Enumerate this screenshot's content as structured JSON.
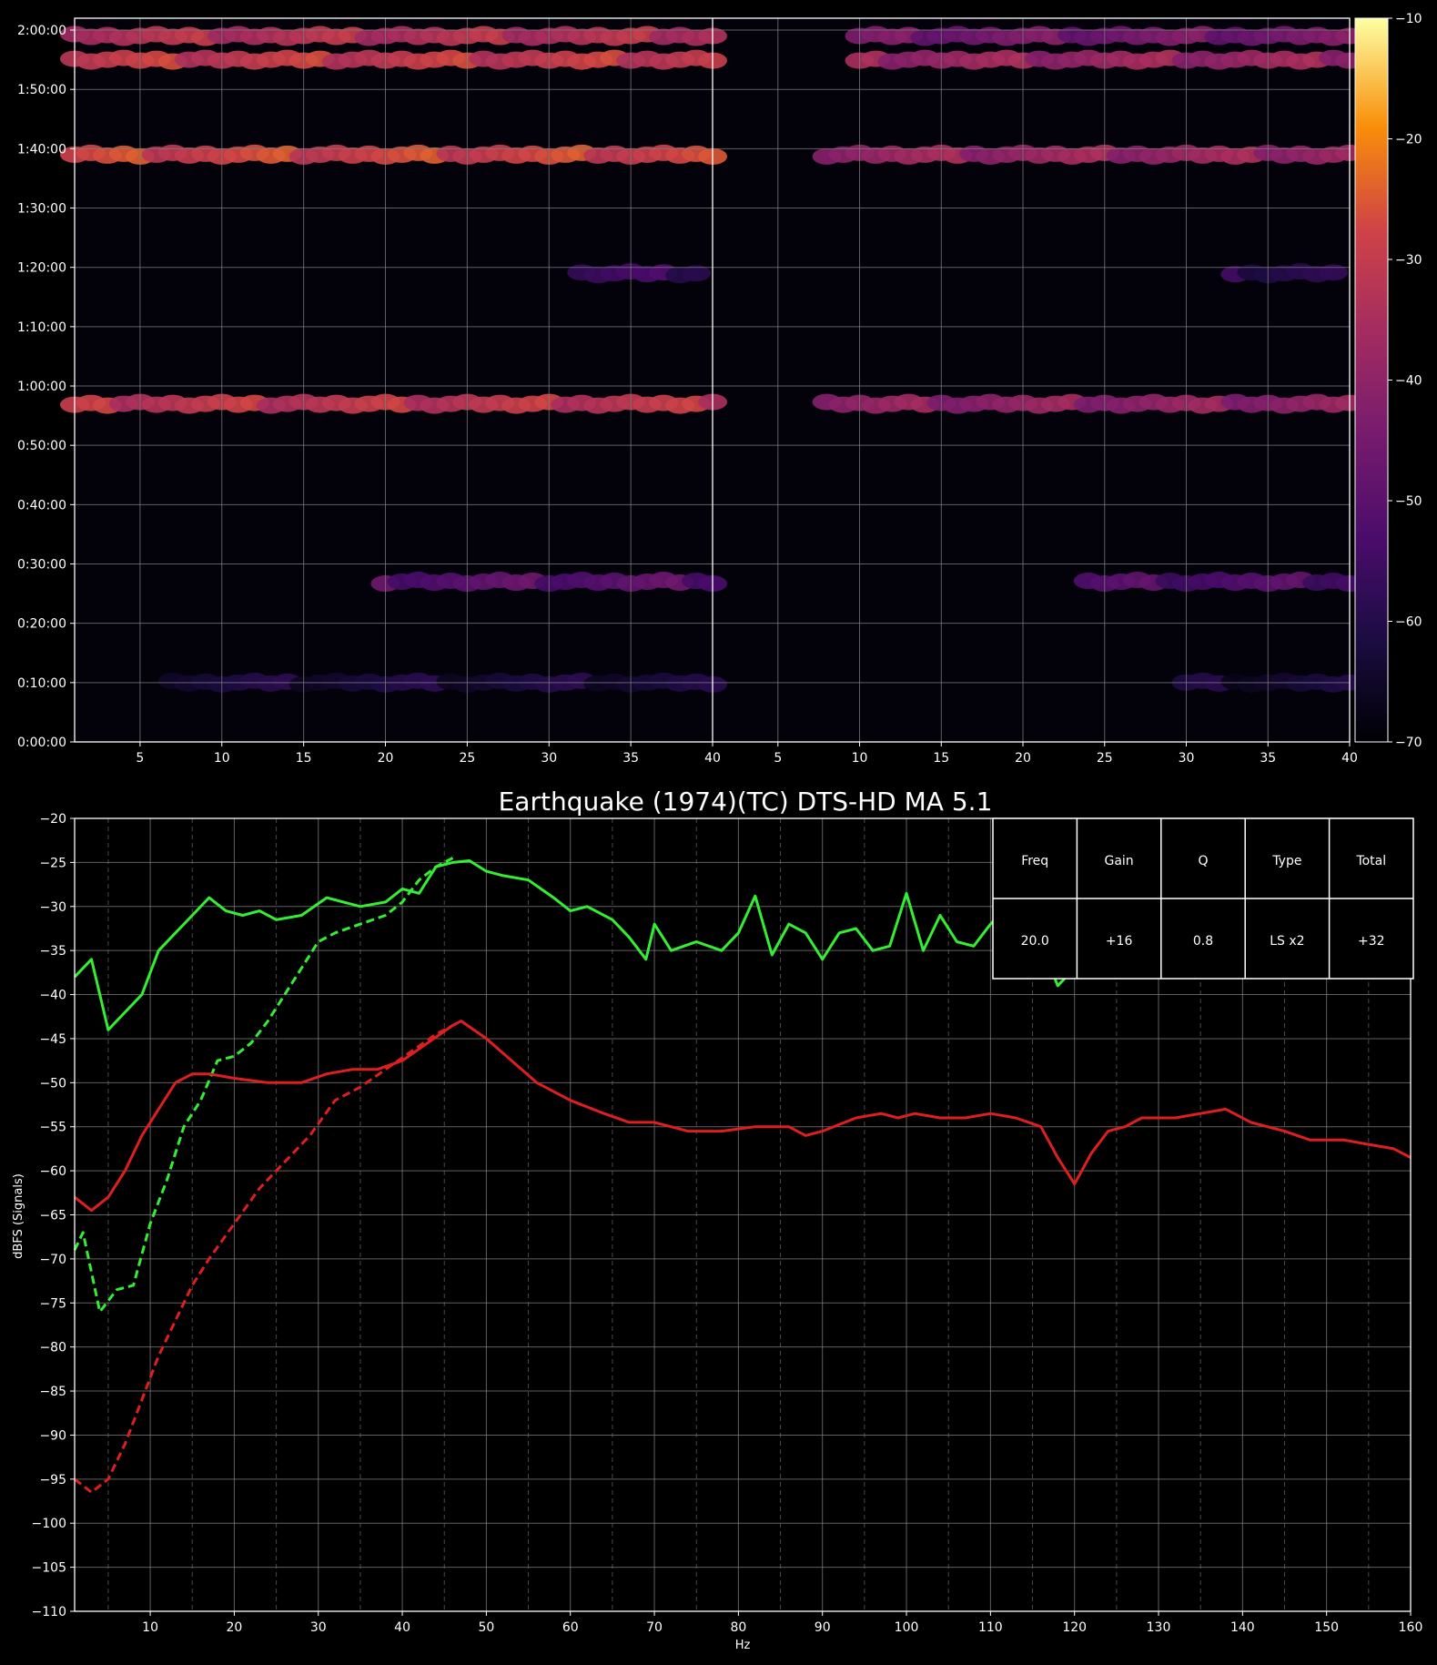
{
  "chart_data": [
    {
      "type": "heatmap",
      "panels": 2,
      "xlim": [
        1,
        40
      ],
      "xticks": [
        5,
        10,
        15,
        20,
        25,
        30,
        35,
        40
      ],
      "ylim_seconds": [
        0,
        7320
      ],
      "yticks": [
        "0:00:00",
        "0:10:00",
        "0:20:00",
        "0:30:00",
        "0:40:00",
        "0:50:00",
        "1:00:00",
        "1:10:00",
        "1:20:00",
        "1:30:00",
        "1:40:00",
        "1:50:00",
        "2:00:00"
      ],
      "colorbar": {
        "range": [
          -70,
          -10
        ],
        "ticks": [
          -10,
          -20,
          -30,
          -40,
          -50,
          -60,
          -70
        ],
        "colormap": "inferno"
      },
      "grid": true,
      "bands": [
        {
          "time": "1:59:00",
          "panel": 1,
          "x": [
            1,
            40
          ],
          "level": -33
        },
        {
          "time": "1:55:00",
          "panel": 1,
          "x": [
            1,
            40
          ],
          "level": -30
        },
        {
          "time": "1:39:00",
          "panel": 1,
          "x": [
            1,
            40
          ],
          "level": -28
        },
        {
          "time": "0:57:00",
          "panel": 1,
          "x": [
            1,
            40
          ],
          "level": -31
        },
        {
          "time": "0:27:00",
          "panel": 1,
          "x": [
            20,
            40
          ],
          "level": -50
        },
        {
          "time": "0:10:00",
          "panel": 1,
          "x": [
            7,
            40
          ],
          "level": -62
        },
        {
          "time": "1:19:00",
          "panel": 1,
          "x": [
            32,
            39
          ],
          "level": -56
        },
        {
          "time": "1:59:00",
          "panel": 2,
          "x": [
            10,
            40
          ],
          "level": -45
        },
        {
          "time": "1:55:00",
          "panel": 2,
          "x": [
            10,
            40
          ],
          "level": -38
        },
        {
          "time": "1:39:00",
          "panel": 2,
          "x": [
            8,
            40
          ],
          "level": -38
        },
        {
          "time": "0:57:00",
          "panel": 2,
          "x": [
            8,
            40
          ],
          "level": -40
        },
        {
          "time": "0:27:00",
          "panel": 2,
          "x": [
            24,
            40
          ],
          "level": -52
        },
        {
          "time": "0:10:00",
          "panel": 2,
          "x": [
            30,
            40
          ],
          "level": -63
        },
        {
          "time": "1:19:00",
          "panel": 2,
          "x": [
            33,
            39
          ],
          "level": -58
        }
      ]
    },
    {
      "type": "line",
      "title": "Earthquake (1974)(TC) DTS-HD MA 5.1",
      "xlabel": "Hz",
      "ylabel": "dBFS (Signals)",
      "xlim": [
        1,
        160
      ],
      "ylim": [
        -110,
        -20
      ],
      "xticks": [
        10,
        20,
        30,
        40,
        50,
        60,
        70,
        80,
        90,
        100,
        110,
        120,
        130,
        140,
        150,
        160
      ],
      "yticks": [
        -20,
        -25,
        -30,
        -35,
        -40,
        -45,
        -50,
        -55,
        -60,
        -65,
        -70,
        -75,
        -80,
        -85,
        -90,
        -95,
        -100,
        -105,
        -110
      ],
      "grid": true,
      "series": [
        {
          "color": "#33ee33",
          "style": "solid",
          "x": [
            1,
            3,
            5,
            7,
            9,
            11,
            13,
            15,
            17,
            19,
            21,
            23,
            25,
            28,
            31,
            35,
            38,
            40,
            42,
            44,
            46,
            48,
            50,
            52,
            55,
            58,
            60,
            62,
            65,
            67,
            69,
            70,
            72,
            75,
            78,
            80,
            82,
            84,
            86,
            88,
            90,
            92,
            94,
            96,
            98,
            100,
            102,
            104,
            106,
            108,
            110,
            112,
            114,
            116,
            118,
            119,
            121,
            123
          ],
          "y": [
            -38,
            -36,
            -44,
            -42,
            -40,
            -35,
            -33,
            -31,
            -29,
            -30.5,
            -31,
            -30.5,
            -31.5,
            -31,
            -29,
            -30,
            -29.5,
            -28,
            -28.5,
            -25.5,
            -25,
            -24.8,
            -26,
            -26.5,
            -27,
            -29,
            -30.5,
            -30,
            -31.5,
            -33.5,
            -36,
            -32,
            -35,
            -34,
            -35,
            -33,
            -28.8,
            -35.5,
            -32,
            -33,
            -36,
            -33,
            -32.5,
            -35,
            -34.5,
            -28.5,
            -35,
            -31,
            -34,
            -34.5,
            -32,
            -30,
            -31,
            -34,
            -39,
            -38,
            -36,
            -35
          ]
        },
        {
          "color": "#33ee33",
          "style": "dashed",
          "x": [
            1,
            2,
            4,
            6,
            8,
            10,
            12,
            14,
            16,
            18,
            20,
            22,
            24,
            26,
            28,
            30,
            32,
            35,
            38,
            40,
            42,
            44,
            46
          ],
          "y": [
            -69,
            -67,
            -76,
            -73.5,
            -73,
            -66,
            -61,
            -55,
            -52,
            -47.5,
            -47,
            -45.5,
            -43,
            -40,
            -37,
            -34,
            -33,
            -32,
            -31,
            -29.5,
            -27,
            -25.5,
            -24.5
          ]
        },
        {
          "color": "#dd1f1f",
          "style": "solid",
          "x": [
            1,
            3,
            5,
            7,
            9,
            11,
            13,
            15,
            17,
            20,
            24,
            28,
            31,
            34,
            37,
            40,
            43,
            46,
            47,
            50,
            53,
            56,
            60,
            64,
            67,
            70,
            74,
            78,
            82,
            86,
            88,
            90,
            94,
            97,
            99,
            101,
            104,
            107,
            110,
            113,
            116,
            118,
            120,
            122,
            124,
            126,
            128,
            132,
            135,
            138,
            141,
            145,
            148,
            152,
            155,
            158,
            160
          ],
          "y": [
            -63,
            -64.5,
            -63,
            -60,
            -56,
            -53,
            -50,
            -49,
            -49,
            -49.5,
            -50,
            -50,
            -49,
            -48.5,
            -48.5,
            -47.5,
            -45.5,
            -43.5,
            -43,
            -45,
            -47.5,
            -50,
            -52,
            -53.5,
            -54.5,
            -54.5,
            -55.5,
            -55.5,
            -55,
            -55,
            -56,
            -55.5,
            -54,
            -53.5,
            -54,
            -53.5,
            -54,
            -54,
            -53.5,
            -54,
            -55,
            -58.5,
            -61.5,
            -58,
            -55.5,
            -55,
            -54,
            -54,
            -53.5,
            -53,
            -54.5,
            -55.5,
            -56.5,
            -56.5,
            -57,
            -57.5,
            -58.5
          ]
        },
        {
          "color": "#dd1f1f",
          "style": "dashed",
          "x": [
            1,
            3,
            5,
            7,
            9,
            11,
            13,
            15,
            17,
            20,
            23,
            26,
            29,
            32,
            35,
            38,
            41,
            44,
            46,
            47
          ],
          "y": [
            -95,
            -96.5,
            -95,
            -91,
            -86,
            -81,
            -77,
            -73,
            -70,
            -66,
            -62,
            -59,
            -56,
            -52,
            -50.5,
            -48.5,
            -46.5,
            -44.5,
            -43.5,
            -43
          ]
        }
      ],
      "table": {
        "headers": [
          "Freq",
          "Gain",
          "Q",
          "Type",
          "Total"
        ],
        "values": [
          "20.0",
          "+16",
          "0.8",
          "LS x2",
          "+32"
        ]
      }
    }
  ]
}
